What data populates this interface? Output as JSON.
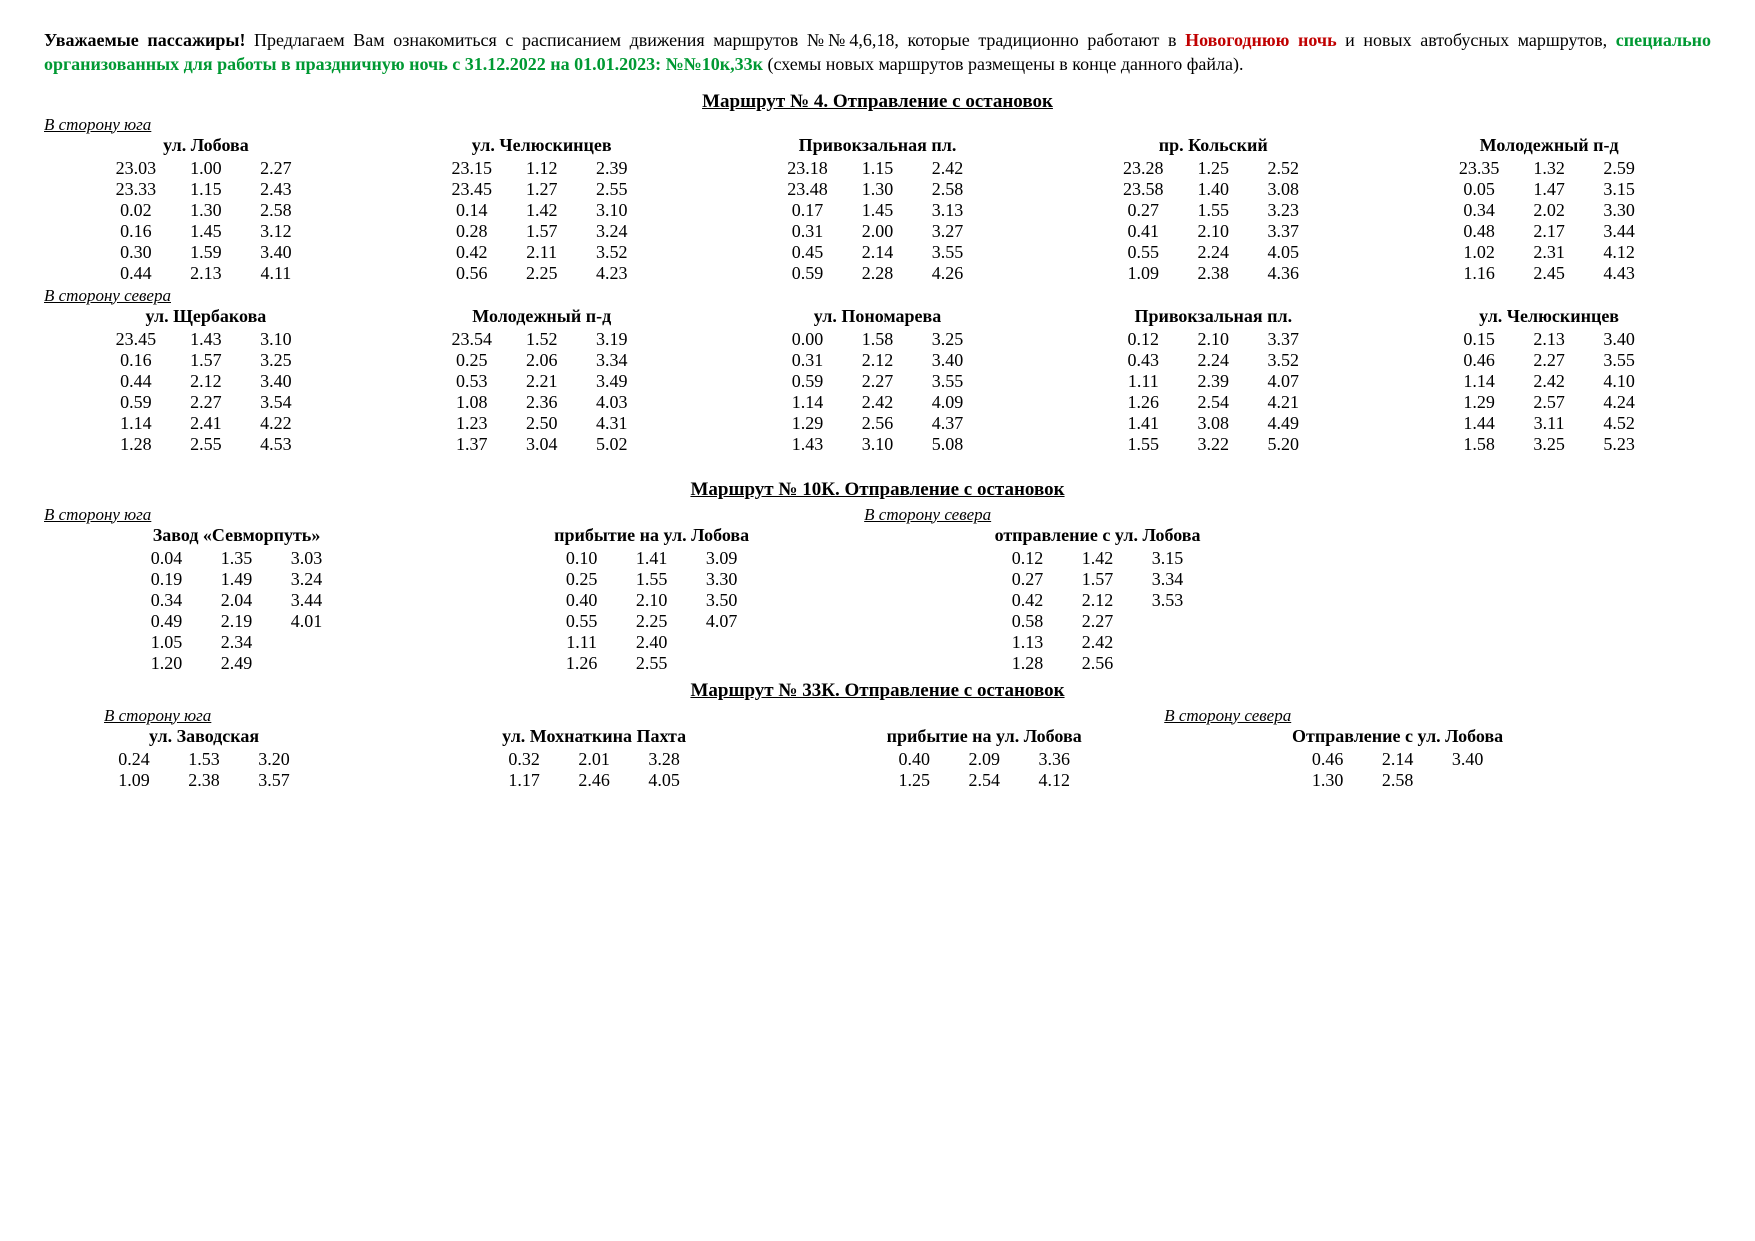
{
  "intro": {
    "lead": "Уважаемые пассажиры!",
    "part1": " Предлагаем Вам ознакомиться с расписанием движения маршрутов №№4,6,18, которые традиционно работают в ",
    "red": "Новогоднюю ночь",
    "part2": " и новых автобусных маршрутов, ",
    "green1": "специально организованных для работы в праздничную ночь с 31.12.2022 на 01.01.2023:  №№10к,33к",
    "part3": " (схемы новых маршрутов размещены в конце данного файла)."
  },
  "route4": {
    "title": "Маршрут № 4.  Отправление с остановок",
    "dir_south": "В сторону юга",
    "dir_north": "В сторону севера",
    "south": [
      {
        "name": "ул. Лобова",
        "cols": [
          [
            "23.03",
            "23.33",
            "0.02",
            "0.16",
            "0.30",
            "0.44"
          ],
          [
            "1.00",
            "1.15",
            "1.30",
            "1.45",
            "1.59",
            "2.13"
          ],
          [
            "2.27",
            "2.43",
            "2.58",
            "3.12",
            "3.40",
            "4.11"
          ]
        ]
      },
      {
        "name": "ул. Челюскинцев",
        "cols": [
          [
            "23.15",
            "23.45",
            "0.14",
            "0.28",
            "0.42",
            "0.56"
          ],
          [
            "1.12",
            "1.27",
            "1.42",
            "1.57",
            "2.11",
            "2.25"
          ],
          [
            "2.39",
            "2.55",
            "3.10",
            "3.24",
            "3.52",
            "4.23"
          ]
        ]
      },
      {
        "name": "Привокзальная пл.",
        "cols": [
          [
            "23.18",
            "23.48",
            "0.17",
            "0.31",
            "0.45",
            "0.59"
          ],
          [
            "1.15",
            "1.30",
            "1.45",
            "2.00",
            "2.14",
            "2.28"
          ],
          [
            "2.42",
            "2.58",
            "3.13",
            "3.27",
            "3.55",
            "4.26"
          ]
        ]
      },
      {
        "name": "пр. Кольский",
        "cols": [
          [
            "23.28",
            "23.58",
            "0.27",
            "0.41",
            "0.55",
            "1.09"
          ],
          [
            "1.25",
            "1.40",
            "1.55",
            "2.10",
            "2.24",
            "2.38"
          ],
          [
            "2.52",
            "3.08",
            "3.23",
            "3.37",
            "4.05",
            "4.36"
          ]
        ]
      },
      {
        "name": "Молодежный п-д",
        "cols": [
          [
            "23.35",
            "0.05",
            "0.34",
            "0.48",
            "1.02",
            "1.16"
          ],
          [
            "1.32",
            "1.47",
            "2.02",
            "2.17",
            "2.31",
            "2.45"
          ],
          [
            "2.59",
            "3.15",
            "3.30",
            "3.44",
            "4.12",
            "4.43"
          ]
        ]
      }
    ],
    "north": [
      {
        "name": "ул. Щербакова",
        "cols": [
          [
            "23.45",
            "0.16",
            "0.44",
            "0.59",
            "1.14",
            "1.28"
          ],
          [
            "1.43",
            "1.57",
            "2.12",
            "2.27",
            "2.41",
            "2.55"
          ],
          [
            "3.10",
            "3.25",
            "3.40",
            "3.54",
            "4.22",
            "4.53"
          ]
        ]
      },
      {
        "name": "Молодежный п-д",
        "cols": [
          [
            "23.54",
            "0.25",
            "0.53",
            "1.08",
            "1.23",
            "1.37"
          ],
          [
            "1.52",
            "2.06",
            "2.21",
            "2.36",
            "2.50",
            "3.04"
          ],
          [
            "3.19",
            "3.34",
            "3.49",
            "4.03",
            "4.31",
            "5.02"
          ]
        ]
      },
      {
        "name": "ул. Пономарева",
        "cols": [
          [
            "0.00",
            "0.31",
            "0.59",
            "1.14",
            "1.29",
            "1.43"
          ],
          [
            "1.58",
            "2.12",
            "2.27",
            "2.42",
            "2.56",
            "3.10"
          ],
          [
            "3.25",
            "3.40",
            "3.55",
            "4.09",
            "4.37",
            "5.08"
          ]
        ]
      },
      {
        "name": "Привокзальная пл.",
        "cols": [
          [
            "0.12",
            "0.43",
            "1.11",
            "1.26",
            "1.41",
            "1.55"
          ],
          [
            "2.10",
            "2.24",
            "2.39",
            "2.54",
            "3.08",
            "3.22"
          ],
          [
            "3.37",
            "3.52",
            "4.07",
            "4.21",
            "4.49",
            "5.20"
          ]
        ]
      },
      {
        "name": "ул. Челюскинцев",
        "cols": [
          [
            "0.15",
            "0.46",
            "1.14",
            "1.29",
            "1.44",
            "1.58"
          ],
          [
            "2.13",
            "2.27",
            "2.42",
            "2.57",
            "3.11",
            "3.25"
          ],
          [
            "3.40",
            "3.55",
            "4.10",
            "4.24",
            "4.52",
            "5.23"
          ]
        ]
      }
    ]
  },
  "route10k": {
    "title": "Маршрут № 10К.  Отправление с остановок",
    "dir_south": "В сторону юга",
    "dir_north": "В сторону севера",
    "south": [
      {
        "name": "Завод «Севморпуть»",
        "cols": [
          [
            "0.04",
            "0.19",
            "0.34",
            "0.49",
            "1.05",
            "1.20"
          ],
          [
            "1.35",
            "1.49",
            "2.04",
            "2.19",
            "2.34",
            "2.49"
          ],
          [
            "3.03",
            "3.24",
            "3.44",
            "4.01",
            "",
            ""
          ]
        ]
      },
      {
        "name": "прибытие на ул. Лобова",
        "cols": [
          [
            "0.10",
            "0.25",
            "0.40",
            "0.55",
            "1.11",
            "1.26"
          ],
          [
            "1.41",
            "1.55",
            "2.10",
            "2.25",
            "2.40",
            "2.55"
          ],
          [
            "3.09",
            "3.30",
            "3.50",
            "4.07",
            "",
            ""
          ]
        ]
      }
    ],
    "north": [
      {
        "name": "отправление с ул. Лобова",
        "cols": [
          [
            "0.12",
            "0.27",
            "0.42",
            "0.58",
            "1.13",
            "1.28"
          ],
          [
            "1.42",
            "1.57",
            "2.12",
            "2.27",
            "2.42",
            "2.56"
          ],
          [
            "3.15",
            "3.34",
            "3.53",
            "",
            "",
            ""
          ]
        ]
      }
    ]
  },
  "route33k": {
    "title": "Маршрут № 33К.  Отправление с остановок",
    "dir_south": "В сторону юга",
    "dir_north": "В сторону севера",
    "south": [
      {
        "name": "ул. Заводская",
        "cols": [
          [
            "0.24",
            "1.09"
          ],
          [
            "1.53",
            "2.38"
          ],
          [
            "3.20",
            "3.57"
          ]
        ]
      },
      {
        "name": "ул. Мохнаткина Пахта",
        "cols": [
          [
            "0.32",
            "1.17"
          ],
          [
            "2.01",
            "2.46"
          ],
          [
            "3.28",
            "4.05"
          ]
        ]
      },
      {
        "name": "прибытие на ул. Лобова",
        "cols": [
          [
            "0.40",
            "1.25"
          ],
          [
            "2.09",
            "2.54"
          ],
          [
            "3.36",
            "4.12"
          ]
        ]
      }
    ],
    "north": [
      {
        "name": "Отправление с ул. Лобова",
        "cols": [
          [
            "0.46",
            "1.30"
          ],
          [
            "2.14",
            "2.58"
          ],
          [
            "3.40",
            ""
          ]
        ]
      }
    ]
  }
}
